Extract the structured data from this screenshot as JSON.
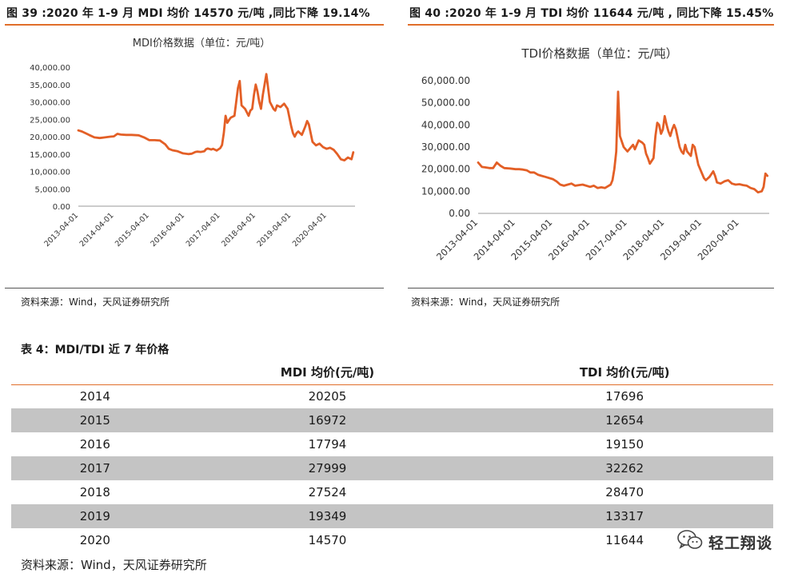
{
  "left_figure": {
    "caption": "图 39 :2020 年 1-9 月 MDI 均价 14570 元/吨 ,同比下降 19.14%",
    "source": "资料来源：Wind，天风证券研究所"
  },
  "right_figure": {
    "caption": "图 40 :2020 年 1-9 月 TDI 均价 11644 元/吨 , 同比下降 15.45%",
    "source": "资料来源：Wind，天风证券研究所"
  },
  "table": {
    "caption": "表 4：MDI/TDI 近 7 年价格",
    "headers": [
      "",
      "MDI 均价(元/吨)",
      "TDI 均价(元/吨)"
    ],
    "rows": [
      {
        "year": "2014",
        "mdi": "20205",
        "tdi": "17696"
      },
      {
        "year": "2015",
        "mdi": "16972",
        "tdi": "12654"
      },
      {
        "year": "2016",
        "mdi": "17794",
        "tdi": "19150"
      },
      {
        "year": "2017",
        "mdi": "27999",
        "tdi": "32262"
      },
      {
        "year": "2018",
        "mdi": "27524",
        "tdi": "28470"
      },
      {
        "year": "2019",
        "mdi": "19349",
        "tdi": "13317"
      },
      {
        "year": "2020",
        "mdi": "14570",
        "tdi": "11644"
      }
    ],
    "source": "资料来源：Wind，天风证券研究所"
  },
  "watermark": {
    "text": "轻工翔谈",
    "icon": "wechat-icon"
  },
  "colors": {
    "accent": "#e06e2a",
    "series": "#e35f26",
    "shade": "#c4c4c4"
  },
  "chart_data": [
    {
      "type": "line",
      "title": "MDI价格数据（单位：元/吨）",
      "xlabel": "",
      "ylabel": "",
      "ylim": [
        0,
        40000
      ],
      "yticks": [
        "0.00",
        "5,000.00",
        "10,000.00",
        "15,000.00",
        "20,000.00",
        "25,000.00",
        "30,000.00",
        "35,000.00",
        "40,000.00"
      ],
      "xticks": [
        "2013-04-01",
        "2014-04-01",
        "2015-04-01",
        "2016-04-01",
        "2017-04-01",
        "2018-04-01",
        "2019-04-01",
        "2020-04-01"
      ],
      "x_range": [
        2013.0,
        2020.8
      ],
      "grid": false,
      "series": [
        {
          "name": "MDI",
          "x": [
            2013.0,
            2013.1,
            2013.2,
            2013.3,
            2013.45,
            2013.6,
            2013.75,
            2013.9,
            2014.0,
            2014.1,
            2014.2,
            2014.35,
            2014.5,
            2014.7,
            2014.85,
            2015.0,
            2015.15,
            2015.3,
            2015.45,
            2015.55,
            2015.65,
            2015.8,
            2015.95,
            2016.1,
            2016.2,
            2016.3,
            2016.35,
            2016.45,
            2016.55,
            2016.6,
            2016.65,
            2016.75,
            2016.8,
            2016.9,
            2017.0,
            2017.05,
            2017.1,
            2017.15,
            2017.2,
            2017.25,
            2017.3,
            2017.4,
            2017.5,
            2017.55,
            2017.6,
            2017.7,
            2017.75,
            2017.8,
            2017.85,
            2017.9,
            2017.95,
            2018.0,
            2018.05,
            2018.1,
            2018.15,
            2018.2,
            2018.3,
            2018.4,
            2018.5,
            2018.55,
            2018.6,
            2018.7,
            2018.8,
            2018.9,
            2019.0,
            2019.05,
            2019.1,
            2019.15,
            2019.2,
            2019.3,
            2019.4,
            2019.45,
            2019.5,
            2019.6,
            2019.7,
            2019.8,
            2019.9,
            2020.0,
            2020.1,
            2020.2,
            2020.3,
            2020.4,
            2020.5,
            2020.6,
            2020.7,
            2020.75
          ],
          "values": [
            21800,
            21500,
            21000,
            20500,
            19800,
            19600,
            19800,
            20000,
            20100,
            20800,
            20600,
            20500,
            20500,
            20400,
            19800,
            19000,
            19000,
            18900,
            17800,
            16500,
            16100,
            15800,
            15200,
            15000,
            15100,
            15600,
            15700,
            15600,
            15800,
            16400,
            16600,
            16300,
            16500,
            16000,
            16700,
            17600,
            21000,
            26000,
            24000,
            24800,
            25500,
            26000,
            34000,
            36000,
            29000,
            28000,
            27000,
            26000,
            27500,
            28000,
            32000,
            35000,
            33000,
            30000,
            28000,
            32000,
            38000,
            30000,
            28000,
            27500,
            29000,
            28500,
            29500,
            28000,
            23000,
            21000,
            20000,
            21000,
            21500,
            20500,
            23000,
            24500,
            23500,
            18500,
            17500,
            18000,
            17000,
            16500,
            16800,
            16200,
            15000,
            13500,
            13200,
            14000,
            13500,
            15500
          ]
        }
      ]
    },
    {
      "type": "line",
      "title": "TDI价格数据（单位：元/吨）",
      "xlabel": "",
      "ylabel": "",
      "ylim": [
        0,
        60000
      ],
      "yticks": [
        "0.00",
        "10,000.00",
        "20,000.00",
        "30,000.00",
        "40,000.00",
        "50,000.00",
        "60,000.00"
      ],
      "xticks": [
        "2013-04-01",
        "2014-04-01",
        "2015-04-01",
        "2016-04-01",
        "2017-04-01",
        "2018-04-01",
        "2019-04-01",
        "2020-04-01"
      ],
      "x_range": [
        2013.0,
        2020.8
      ],
      "grid": false,
      "series": [
        {
          "name": "TDI",
          "x": [
            2013.0,
            2013.1,
            2013.2,
            2013.3,
            2013.4,
            2013.5,
            2013.6,
            2013.7,
            2013.85,
            2014.0,
            2014.1,
            2014.2,
            2014.3,
            2014.4,
            2014.5,
            2014.6,
            2014.7,
            2014.8,
            2015.0,
            2015.1,
            2015.2,
            2015.3,
            2015.4,
            2015.5,
            2015.6,
            2015.7,
            2015.8,
            2016.0,
            2016.1,
            2016.2,
            2016.3,
            2016.4,
            2016.45,
            2016.5,
            2016.55,
            2016.6,
            2016.62,
            2016.65,
            2016.7,
            2016.75,
            2016.8,
            2016.9,
            2017.0,
            2017.05,
            2017.1,
            2017.15,
            2017.2,
            2017.3,
            2017.4,
            2017.45,
            2017.5,
            2017.55,
            2017.6,
            2017.7,
            2017.75,
            2017.8,
            2017.85,
            2017.9,
            2017.95,
            2018.0,
            2018.05,
            2018.1,
            2018.15,
            2018.2,
            2018.25,
            2018.3,
            2018.4,
            2018.45,
            2018.5,
            2018.55,
            2018.6,
            2018.7,
            2018.75,
            2018.8,
            2018.9,
            2019.0,
            2019.05,
            2019.1,
            2019.2,
            2019.3,
            2019.35,
            2019.4,
            2019.5,
            2019.6,
            2019.7,
            2019.8,
            2019.9,
            2020.0,
            2020.1,
            2020.2,
            2020.3,
            2020.4,
            2020.5,
            2020.6,
            2020.65,
            2020.7,
            2020.75
          ],
          "values": [
            23000,
            21000,
            20800,
            20500,
            20500,
            23000,
            21500,
            20500,
            20300,
            20000,
            20000,
            19800,
            19500,
            18500,
            18500,
            17500,
            17000,
            16500,
            15500,
            14500,
            13000,
            12500,
            13000,
            13500,
            12500,
            12800,
            13000,
            12000,
            12500,
            11500,
            11800,
            11500,
            12000,
            12500,
            13000,
            15000,
            17000,
            20000,
            28000,
            55000,
            35000,
            30000,
            28000,
            29000,
            30000,
            31000,
            29000,
            33000,
            32000,
            31000,
            27000,
            25000,
            22500,
            25000,
            35000,
            41000,
            40000,
            36000,
            38000,
            44000,
            40000,
            37000,
            35000,
            38000,
            40000,
            38000,
            30000,
            28000,
            27000,
            31000,
            28000,
            26000,
            31000,
            30000,
            22000,
            18000,
            16000,
            15000,
            16500,
            19000,
            17000,
            14000,
            13500,
            14500,
            15000,
            13500,
            13000,
            13200,
            12800,
            12500,
            11500,
            11000,
            9500,
            10000,
            12000,
            18000,
            17000
          ]
        }
      ]
    }
  ]
}
